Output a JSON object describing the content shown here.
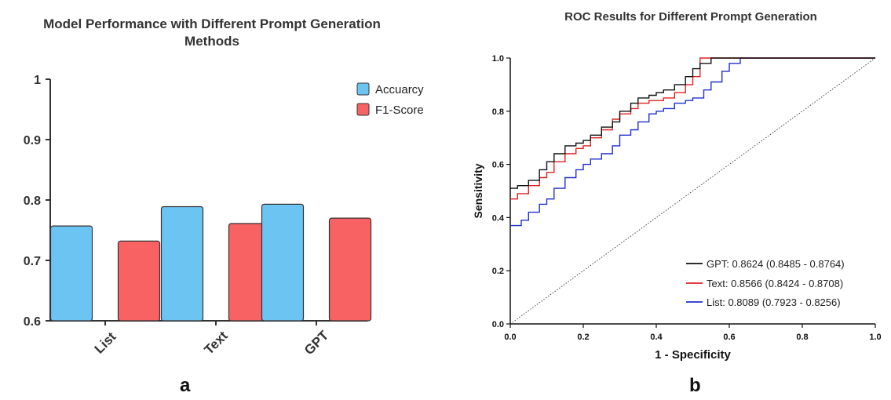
{
  "panel_a": {
    "title": "Model Performance with Different Prompt Generation Methods",
    "letter": "a"
  },
  "panel_b": {
    "title": "ROC Results for Different Prompt Generation",
    "letter": "b"
  },
  "chart_data": [
    {
      "type": "bar",
      "title": "Model Performance with Different Prompt Generation Methods",
      "categories": [
        "List",
        "Text",
        "GPT"
      ],
      "series": [
        {
          "name": "Accuarcy",
          "color": "#6cc4f3",
          "values": [
            0.757,
            0.789,
            0.793
          ]
        },
        {
          "name": "F1-Score",
          "color": "#f86262",
          "values": [
            0.732,
            0.761,
            0.77
          ]
        }
      ],
      "xlabel": "",
      "ylabel": "",
      "ylim": [
        0.6,
        1.0
      ],
      "yticks": [
        0.6,
        0.7,
        0.8,
        0.9,
        1
      ],
      "ytick_labels": [
        "0.6",
        "0.7",
        "0.8",
        "0.9",
        "1"
      ],
      "legend": "top-right",
      "grid": false
    },
    {
      "type": "line",
      "title": "ROC Results for Different Prompt Generation",
      "xlabel": "1 - Specificity",
      "ylabel": "Sensitivity",
      "xlim": [
        0,
        1
      ],
      "ylim": [
        0,
        1
      ],
      "xticks": [
        0.0,
        0.2,
        0.4,
        0.6,
        0.8,
        1.0
      ],
      "yticks": [
        0.0,
        0.2,
        0.4,
        0.6,
        0.8,
        1.0
      ],
      "tick_labels": [
        "0.0",
        "0.2",
        "0.4",
        "0.6",
        "0.8",
        "1.0"
      ],
      "legend": "bottom-right",
      "grid": false,
      "reference_line": {
        "x": [
          0,
          1
        ],
        "y": [
          0,
          1
        ],
        "style": "dotted"
      },
      "series": [
        {
          "name": "GPT",
          "color": "#111111",
          "label": "GPT: 0.8624 (0.8485 - 0.8764)",
          "x": [
            0,
            0.02,
            0.05,
            0.08,
            0.1,
            0.12,
            0.15,
            0.18,
            0.2,
            0.22,
            0.25,
            0.28,
            0.3,
            0.33,
            0.35,
            0.38,
            0.4,
            0.42,
            0.45,
            0.48,
            0.5,
            0.52,
            0.55,
            1.0
          ],
          "y": [
            0.51,
            0.52,
            0.54,
            0.58,
            0.61,
            0.64,
            0.67,
            0.68,
            0.69,
            0.71,
            0.74,
            0.76,
            0.8,
            0.83,
            0.85,
            0.86,
            0.87,
            0.88,
            0.9,
            0.93,
            0.96,
            0.98,
            1.0,
            1.0
          ]
        },
        {
          "name": "Text",
          "color": "#e02020",
          "label": "Text: 0.8566 (0.8424 - 0.8708)",
          "x": [
            0,
            0.02,
            0.05,
            0.08,
            0.1,
            0.12,
            0.15,
            0.18,
            0.2,
            0.22,
            0.25,
            0.28,
            0.3,
            0.33,
            0.35,
            0.38,
            0.4,
            0.42,
            0.45,
            0.48,
            0.5,
            0.52,
            1.0
          ],
          "y": [
            0.47,
            0.49,
            0.52,
            0.55,
            0.57,
            0.61,
            0.64,
            0.66,
            0.67,
            0.7,
            0.73,
            0.77,
            0.79,
            0.81,
            0.83,
            0.84,
            0.84,
            0.85,
            0.87,
            0.9,
            0.93,
            1.0,
            1.0
          ]
        },
        {
          "name": "List",
          "color": "#1f2fcf",
          "label": "List: 0.8089 (0.7923 - 0.8256)",
          "x": [
            0,
            0.03,
            0.05,
            0.08,
            0.1,
            0.12,
            0.15,
            0.18,
            0.2,
            0.22,
            0.25,
            0.28,
            0.3,
            0.33,
            0.35,
            0.38,
            0.4,
            0.42,
            0.45,
            0.48,
            0.5,
            0.53,
            0.55,
            0.58,
            0.6,
            0.63,
            1.0
          ],
          "y": [
            0.37,
            0.39,
            0.42,
            0.45,
            0.47,
            0.51,
            0.55,
            0.58,
            0.6,
            0.62,
            0.64,
            0.67,
            0.71,
            0.73,
            0.76,
            0.79,
            0.8,
            0.81,
            0.83,
            0.84,
            0.85,
            0.88,
            0.91,
            0.95,
            0.98,
            1.0,
            1.0
          ]
        }
      ]
    }
  ]
}
